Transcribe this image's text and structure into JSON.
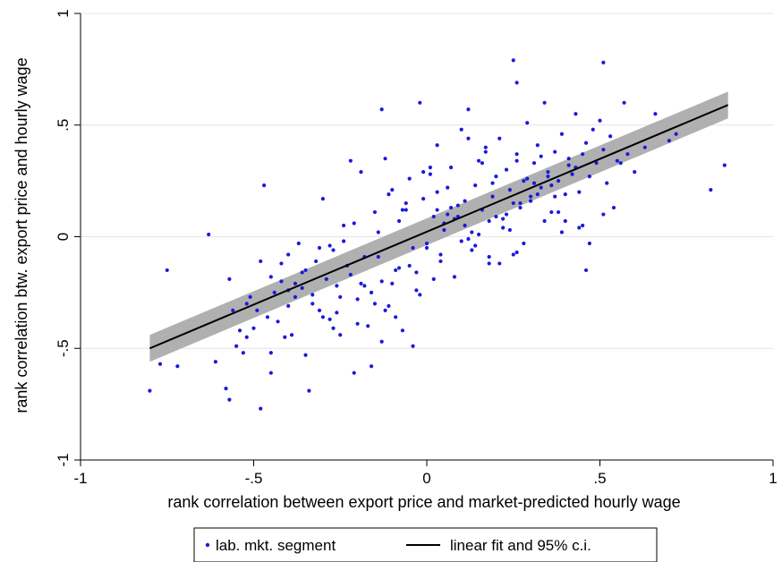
{
  "chart_data": {
    "type": "scatter",
    "xlabel": "rank correlation between export price and market-predicted hourly wage",
    "ylabel": "rank correlation btw. export price and hourly wage",
    "xlim": [
      -1,
      1
    ],
    "ylim": [
      -1,
      1
    ],
    "x_ticks": [
      {
        "value": -1,
        "label": "-1"
      },
      {
        "value": -0.5,
        "label": "-.5"
      },
      {
        "value": 0,
        "label": "0"
      },
      {
        "value": 0.5,
        "label": ".5"
      },
      {
        "value": 1,
        "label": "1"
      }
    ],
    "y_ticks": [
      {
        "value": -1,
        "label": "-1"
      },
      {
        "value": -0.5,
        "label": "-.5"
      },
      {
        "value": 0,
        "label": "0"
      },
      {
        "value": 0.5,
        "label": ".5"
      },
      {
        "value": 1,
        "label": "1"
      }
    ],
    "grid": "horizontal",
    "legend_position": "bottom",
    "series": [
      {
        "name": "lab. mkt. segment",
        "kind": "scatter",
        "color": "#1a1adb",
        "x": [
          -0.8,
          -0.77,
          -0.75,
          -0.72,
          -0.63,
          -0.61,
          -0.58,
          -0.57,
          -0.57,
          -0.56,
          -0.55,
          -0.54,
          -0.53,
          -0.52,
          -0.51,
          -0.5,
          -0.49,
          -0.48,
          -0.47,
          -0.46,
          -0.45,
          -0.45,
          -0.44,
          -0.43,
          -0.42,
          -0.41,
          -0.4,
          -0.4,
          -0.39,
          -0.38,
          -0.37,
          -0.36,
          -0.35,
          -0.34,
          -0.33,
          -0.32,
          -0.31,
          -0.3,
          -0.29,
          -0.28,
          -0.27,
          -0.26,
          -0.25,
          -0.24,
          -0.23,
          -0.22,
          -0.21,
          -0.2,
          -0.19,
          -0.18,
          -0.17,
          -0.16,
          -0.15,
          -0.14,
          -0.13,
          -0.12,
          -0.11,
          -0.1,
          -0.09,
          -0.08,
          -0.07,
          -0.06,
          -0.05,
          -0.04,
          -0.03,
          -0.02,
          -0.01,
          0.0,
          0.01,
          0.02,
          0.03,
          0.04,
          0.05,
          0.06,
          0.07,
          0.08,
          0.09,
          0.1,
          0.11,
          0.12,
          0.13,
          0.14,
          0.15,
          0.16,
          0.17,
          0.18,
          0.19,
          0.2,
          0.21,
          0.22,
          0.23,
          0.24,
          0.25,
          0.26,
          0.27,
          0.28,
          0.29,
          0.3,
          0.31,
          0.32,
          0.33,
          0.34,
          0.35,
          0.36,
          0.37,
          0.38,
          0.39,
          0.4,
          0.41,
          0.42,
          0.43,
          0.44,
          0.45,
          0.46,
          0.47,
          0.48,
          0.49,
          0.5,
          0.51,
          0.52,
          0.53,
          0.55,
          0.57,
          0.6,
          0.63,
          0.66,
          0.7,
          0.72,
          0.82,
          0.86,
          -0.3,
          -0.25,
          -0.2,
          -0.15,
          -0.1,
          -0.05,
          0.0,
          0.05,
          0.1,
          0.15,
          0.2,
          0.25,
          0.3,
          0.35,
          0.4,
          -0.45,
          -0.35,
          -0.28,
          -0.18,
          -0.12,
          -0.08,
          -0.02,
          0.04,
          0.08,
          0.12,
          0.18,
          0.22,
          0.26,
          0.32,
          0.38,
          0.44,
          -0.4,
          -0.33,
          -0.22,
          -0.14,
          -0.06,
          0.02,
          0.06,
          0.14,
          0.19,
          0.24,
          0.29,
          0.34,
          0.41,
          0.47,
          0.54,
          -0.52,
          -0.42,
          -0.31,
          -0.24,
          -0.16,
          -0.11,
          -0.03,
          0.03,
          0.09,
          0.16,
          0.21,
          0.27,
          0.33,
          0.39,
          0.46,
          0.58,
          -0.38,
          -0.27,
          -0.19,
          -0.13,
          -0.07,
          -0.01,
          0.07,
          0.13,
          0.17,
          0.23,
          0.28,
          0.36,
          0.43,
          0.51,
          -0.48,
          -0.36,
          -0.26,
          -0.21,
          -0.09,
          -0.04,
          0.01,
          0.11,
          0.18,
          0.25,
          0.31,
          0.37,
          0.45,
          0.56,
          0.26,
          0.51,
          0.26,
          -0.13,
          0.03,
          0.12
        ],
        "y": [
          -0.69,
          -0.57,
          -0.15,
          -0.58,
          0.01,
          -0.56,
          -0.68,
          -0.73,
          -0.19,
          -0.33,
          -0.49,
          -0.42,
          -0.52,
          -0.3,
          -0.27,
          -0.41,
          -0.33,
          -0.77,
          0.23,
          -0.36,
          -0.52,
          -0.61,
          -0.25,
          -0.38,
          -0.12,
          -0.45,
          -0.31,
          -0.08,
          -0.44,
          -0.21,
          -0.03,
          -0.16,
          -0.53,
          -0.69,
          -0.26,
          -0.11,
          -0.33,
          0.17,
          -0.19,
          -0.37,
          -0.06,
          -0.22,
          -0.44,
          0.05,
          -0.13,
          0.34,
          -0.61,
          -0.28,
          0.29,
          -0.09,
          -0.4,
          -0.58,
          0.11,
          0.02,
          -0.2,
          0.35,
          -0.31,
          0.21,
          -0.15,
          0.07,
          -0.42,
          0.12,
          0.26,
          -0.05,
          -0.24,
          0.6,
          0.17,
          -0.03,
          0.28,
          0.09,
          0.41,
          -0.11,
          0.03,
          0.22,
          0.31,
          -0.18,
          0.14,
          0.48,
          0.05,
          0.57,
          -0.06,
          0.23,
          0.34,
          0.12,
          0.4,
          -0.09,
          0.18,
          0.27,
          0.44,
          0.08,
          0.3,
          0.21,
          0.79,
          0.37,
          0.13,
          0.25,
          0.51,
          0.16,
          0.33,
          0.41,
          0.22,
          0.6,
          0.29,
          0.11,
          0.38,
          0.25,
          0.46,
          0.19,
          0.32,
          0.28,
          0.55,
          0.2,
          0.37,
          0.42,
          0.27,
          0.48,
          0.33,
          0.52,
          0.39,
          0.24,
          0.45,
          0.34,
          0.6,
          0.29,
          0.4,
          0.55,
          0.43,
          0.46,
          0.21,
          0.32,
          -0.36,
          -0.27,
          -0.39,
          -0.3,
          -0.21,
          -0.13,
          -0.05,
          0.06,
          -0.02,
          0.01,
          0.09,
          0.15,
          0.18,
          0.27,
          0.07,
          -0.18,
          -0.15,
          -0.04,
          -0.22,
          -0.33,
          -0.14,
          -0.26,
          -0.08,
          0.08,
          -0.01,
          -0.12,
          0.04,
          -0.07,
          0.19,
          0.11,
          0.04,
          -0.24,
          -0.3,
          -0.17,
          -0.09,
          0.15,
          -0.19,
          0.1,
          -0.04,
          0.24,
          0.03,
          0.26,
          0.07,
          0.35,
          -0.03,
          0.13,
          -0.45,
          -0.2,
          -0.05,
          -0.02,
          -0.25,
          0.19,
          -0.16,
          0.2,
          0.09,
          0.33,
          -0.12,
          0.15,
          0.36,
          0.02,
          -0.15,
          0.37,
          -0.27,
          -0.41,
          -0.21,
          -0.47,
          0.12,
          0.29,
          0.13,
          0.02,
          0.38,
          0.1,
          -0.03,
          0.23,
          0.31,
          0.1,
          -0.11,
          -0.23,
          -0.34,
          0.06,
          -0.36,
          -0.49,
          0.31,
          0.16,
          0.07,
          -0.08,
          0.24,
          0.18,
          0.05,
          0.33,
          0.69,
          0.78,
          0.34,
          0.57,
          0.12,
          0.44
        ]
      },
      {
        "name": "linear fit and 95% c.i.",
        "kind": "line",
        "color": "#000000",
        "band_color": "#b0b0b0",
        "x": [
          -0.8,
          0.87
        ],
        "y": [
          -0.5,
          0.59
        ],
        "ci_lower": [
          -0.56,
          0.53
        ],
        "ci_upper": [
          -0.44,
          0.65
        ]
      }
    ]
  },
  "legend": {
    "items": [
      {
        "label": "lab. mkt. segment",
        "symbol": "dot"
      },
      {
        "label": "linear fit and 95% c.i.",
        "symbol": "line"
      }
    ]
  }
}
